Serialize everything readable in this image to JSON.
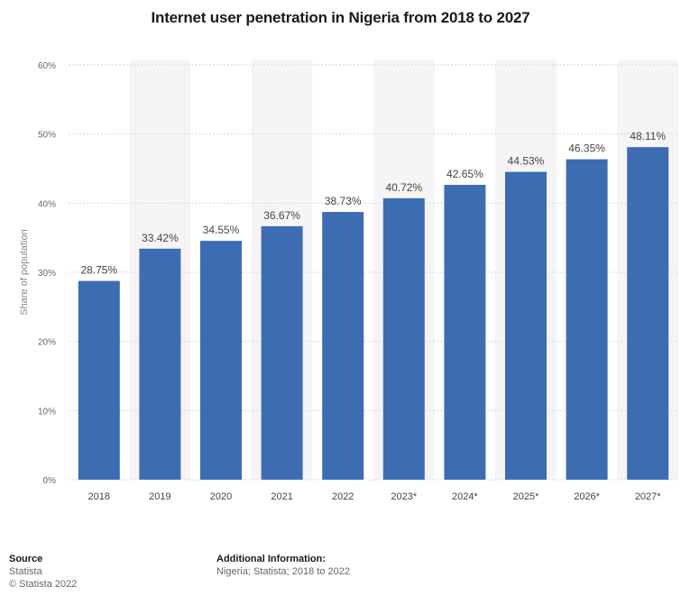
{
  "chart_data": {
    "type": "bar",
    "title": "Internet user penetration in Nigeria from 2018 to 2027",
    "xlabel": "",
    "ylabel": "Share of population",
    "categories": [
      "2018",
      "2019",
      "2020",
      "2021",
      "2022",
      "2023*",
      "2024*",
      "2025*",
      "2026*",
      "2027*"
    ],
    "values": [
      28.75,
      33.42,
      34.55,
      36.67,
      38.73,
      40.72,
      42.65,
      44.53,
      46.35,
      48.11
    ],
    "value_labels": [
      "28.75%",
      "33.42%",
      "34.55%",
      "36.67%",
      "38.73%",
      "40.72%",
      "42.65%",
      "44.53%",
      "46.35%",
      "48.11%"
    ],
    "ylim": [
      0,
      60
    ],
    "yticks": [
      0,
      10,
      20,
      30,
      40,
      50,
      60
    ],
    "ytick_labels": [
      "0%",
      "10%",
      "20%",
      "30%",
      "40%",
      "50%",
      "60%"
    ],
    "grid": true,
    "legend": "none"
  },
  "colors": {
    "bar": "#3c6db3",
    "band": "#f7f4f6",
    "grid": "#d6d6d6",
    "tick_text": "#666666",
    "label_text": "#444444"
  },
  "footer": {
    "source_heading": "Source",
    "source_lines": [
      "Statista",
      "© Statista 2022"
    ],
    "info_heading": "Additional Information:",
    "info_text": "Nigeria; Statista; 2018 to 2022"
  }
}
